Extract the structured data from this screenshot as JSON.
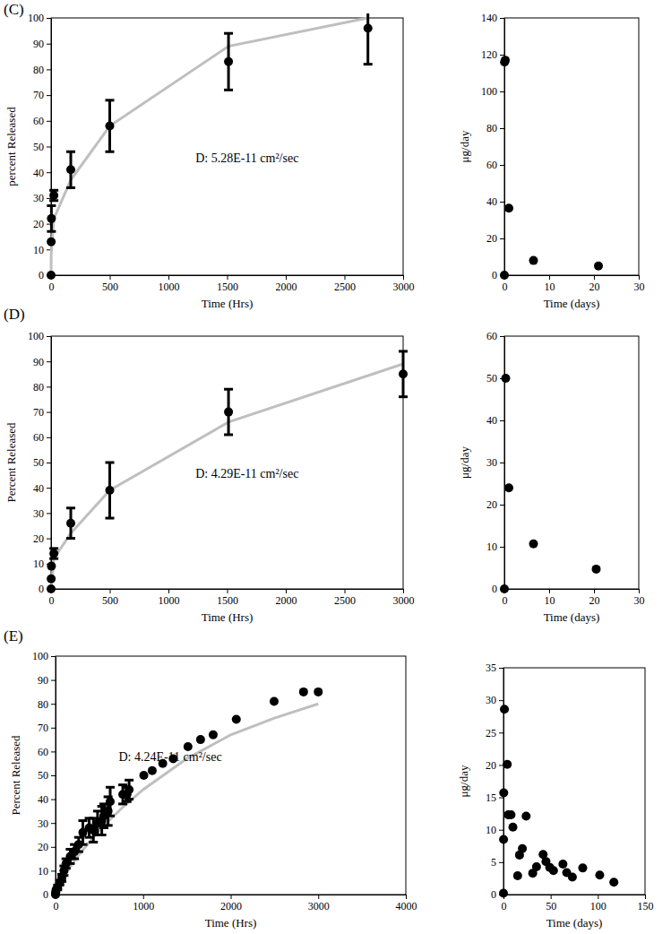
{
  "chart_data": [
    {
      "type": "scatter",
      "title": "(C)",
      "annotation": "D: 5.28E-11 cm²/sec",
      "x_label": "Time (Hrs)",
      "y_label": "percent Released",
      "xlim": [
        0,
        3000
      ],
      "xticks": [
        0,
        500,
        1000,
        1500,
        2000,
        2500,
        3000
      ],
      "ylim": [
        0,
        100
      ],
      "yticks": [
        0,
        10,
        20,
        30,
        40,
        50,
        60,
        70,
        80,
        90,
        100
      ],
      "series": [
        {
          "type": "scatter",
          "color": "#000000",
          "marker": "circle",
          "x": [
            0,
            1,
            3,
            24,
            168,
            500,
            1512,
            2700
          ],
          "values": [
            0,
            13,
            22,
            31,
            41,
            58,
            83,
            96
          ],
          "error": [
            null,
            null,
            5,
            2,
            7,
            10,
            11,
            14
          ]
        },
        {
          "type": "line",
          "color": "#bfbfbf",
          "line_style": "solid",
          "x": [
            0,
            1,
            24,
            168,
            500,
            1512,
            2700
          ],
          "values": [
            0,
            8,
            22,
            37,
            58,
            89,
            100
          ]
        }
      ]
    },
    {
      "type": "scatter",
      "x_label": "Time (days)",
      "y_label": "μg/day",
      "xlim": [
        0,
        30
      ],
      "xticks": [
        0,
        10,
        20,
        30
      ],
      "ylim": [
        0,
        140
      ],
      "yticks": [
        0,
        20,
        40,
        60,
        80,
        100,
        120,
        140
      ],
      "series": [
        {
          "type": "scatter",
          "color": "#000000",
          "marker": "circle",
          "x": [
            0,
            0.04,
            0.2,
            1,
            6.5,
            21
          ],
          "values": [
            0,
            116,
            117,
            36.5,
            8,
            5
          ]
        }
      ]
    },
    {
      "type": "scatter",
      "title": "(D)",
      "annotation": "D: 4.29E-11 cm²/sec",
      "x_label": "Time (Hrs)",
      "y_label": "Percent Released",
      "xlim": [
        0,
        3000
      ],
      "xticks": [
        0,
        500,
        1000,
        1500,
        2000,
        2500,
        3000
      ],
      "ylim": [
        0,
        100
      ],
      "yticks": [
        0,
        10,
        20,
        30,
        40,
        50,
        60,
        70,
        80,
        90,
        100
      ],
      "series": [
        {
          "type": "scatter",
          "color": "#000000",
          "marker": "circle",
          "x": [
            0,
            1,
            3,
            24,
            168,
            500,
            1512,
            3000
          ],
          "values": [
            0,
            4,
            9,
            14,
            26,
            39,
            70,
            85
          ],
          "error": [
            null,
            null,
            null,
            2,
            6,
            11,
            9,
            9
          ]
        },
        {
          "type": "line",
          "color": "#bfbfbf",
          "line_style": "solid",
          "x": [
            0,
            24,
            168,
            500,
            1512,
            3000
          ],
          "values": [
            0,
            12,
            22,
            39,
            66,
            89
          ]
        }
      ]
    },
    {
      "type": "scatter",
      "x_label": "Time (days)",
      "y_label": "μg/day",
      "xlim": [
        0,
        30
      ],
      "xticks": [
        0,
        10,
        20,
        30
      ],
      "ylim": [
        0,
        60
      ],
      "yticks": [
        0,
        10,
        20,
        30,
        40,
        50,
        60
      ],
      "series": [
        {
          "type": "scatter",
          "color": "#000000",
          "marker": "circle",
          "x": [
            0,
            0.3,
            1,
            6.5,
            20.5
          ],
          "values": [
            0,
            50,
            24,
            10.7,
            4.7
          ]
        }
      ]
    },
    {
      "type": "scatter",
      "title": "(E)",
      "annotation": "D: 4.24E-11 cm²/sec",
      "x_label": "Time (Hrs)",
      "y_label": "Percent Released",
      "xlim": [
        0,
        4000
      ],
      "xticks": [
        0,
        1000,
        2000,
        3000,
        4000
      ],
      "ylim": [
        0,
        100
      ],
      "yticks": [
        0,
        10,
        20,
        30,
        40,
        50,
        60,
        70,
        80,
        90,
        100
      ],
      "series": [
        {
          "type": "scatter",
          "color": "#000000",
          "marker": "circle",
          "x": [
            0,
            1,
            3,
            6,
            24,
            48,
            72,
            96,
            120,
            168,
            216,
            264,
            312,
            384,
            432,
            480,
            528,
            552,
            600,
            624,
            768,
            816,
            840,
            1008,
            1104,
            1224,
            1344,
            1512,
            1656,
            1800,
            2064,
            2496,
            2832,
            3000
          ],
          "values": [
            0,
            0.5,
            1,
            2,
            3,
            5,
            7,
            10,
            13,
            16,
            18,
            21,
            26,
            28,
            27,
            30,
            31,
            33,
            35,
            39,
            42,
            42,
            44,
            50,
            52,
            55,
            57,
            62,
            65,
            67,
            73.5,
            81,
            85,
            85
          ],
          "error": [
            null,
            null,
            null,
            null,
            1,
            1,
            1.5,
            2,
            2,
            3,
            3,
            3,
            5,
            4,
            5,
            5,
            6,
            5,
            6,
            6,
            4,
            3,
            4,
            null,
            null,
            null,
            null,
            null,
            null,
            null,
            null,
            null,
            null,
            null
          ]
        },
        {
          "type": "line",
          "color": "#bfbfbf",
          "line_style": "solid",
          "x": [
            0,
            100,
            250,
            500,
            750,
            1000,
            1500,
            2000,
            2500,
            3000
          ],
          "values": [
            0,
            8,
            16,
            27,
            36,
            44,
            57,
            67,
            74,
            80
          ]
        }
      ]
    },
    {
      "type": "scatter",
      "x_label": "Time (days)",
      "y_label": "μg/day",
      "xlim": [
        0,
        150
      ],
      "xticks": [
        0,
        50,
        100,
        150
      ],
      "ylim": [
        0,
        35
      ],
      "yticks": [
        0,
        5,
        10,
        15,
        20,
        25,
        30,
        35
      ],
      "series": [
        {
          "type": "scatter",
          "color": "#000000",
          "marker": "circle",
          "x": [
            0,
            0.1,
            0.3,
            1,
            4,
            5,
            8,
            10,
            15,
            17,
            20,
            24,
            31,
            35,
            42,
            45,
            49,
            53,
            63,
            67,
            73,
            84,
            102,
            117
          ],
          "values": [
            0.2,
            8.5,
            15.7,
            28.6,
            20.1,
            12.3,
            12.3,
            10.4,
            2.9,
            6.1,
            7.1,
            12.1,
            3.3,
            4.3,
            6.2,
            5.1,
            4.2,
            3.7,
            4.7,
            3.4,
            2.7,
            4.1,
            3,
            1.9
          ]
        }
      ]
    }
  ]
}
